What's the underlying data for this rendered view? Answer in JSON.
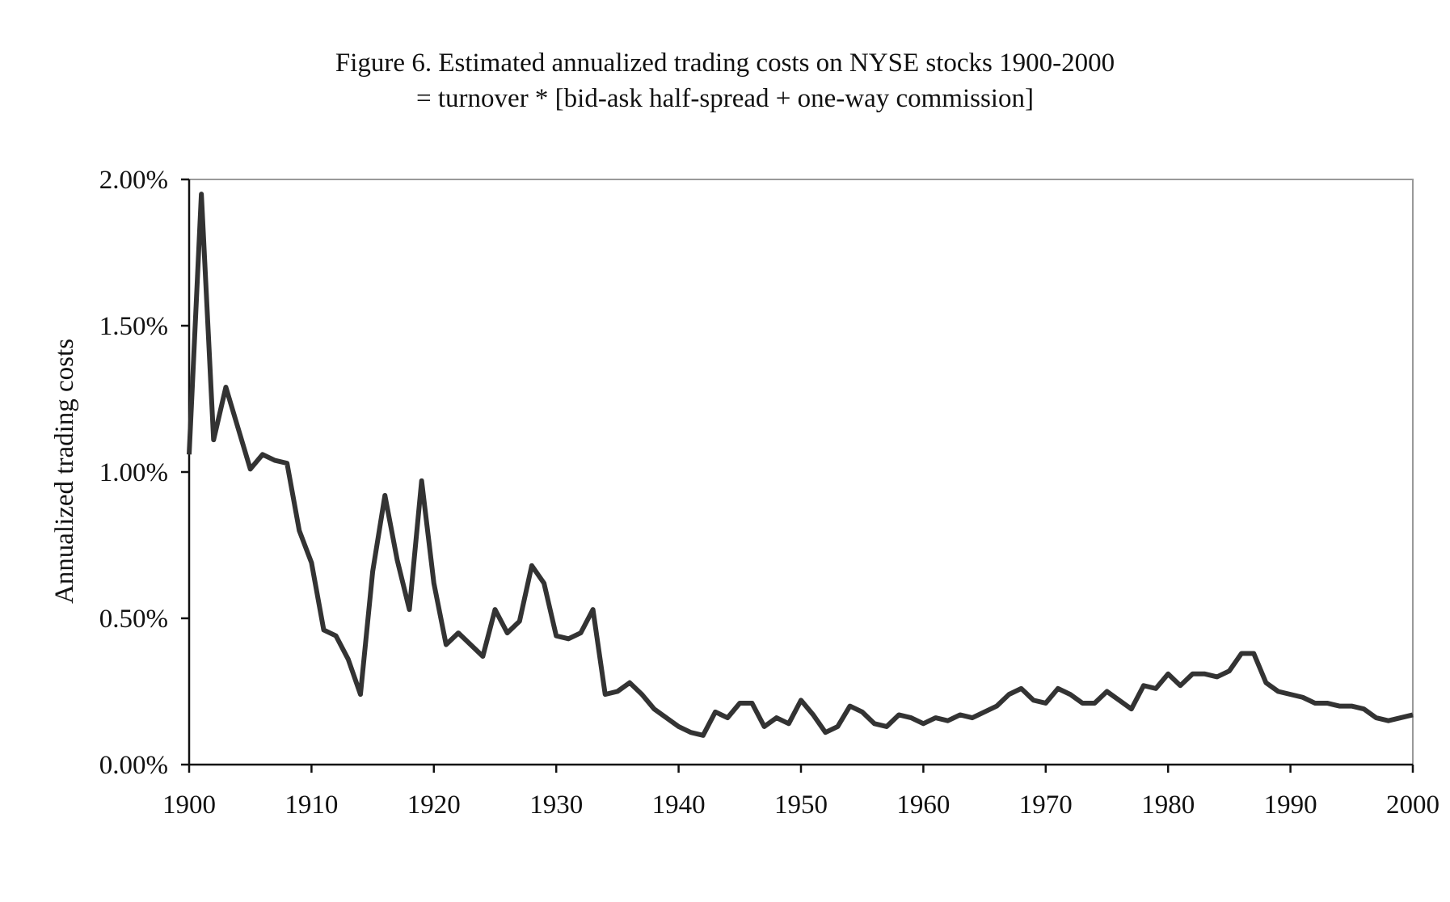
{
  "chart_data": {
    "type": "line",
    "title": "Figure 6.  Estimated annualized trading costs on NYSE stocks 1900-2000",
    "subtitle": "= turnover * [bid-ask half-spread + one-way commission]",
    "xlabel": "",
    "ylabel": "Annualized trading costs",
    "xlim": [
      1900,
      2000
    ],
    "ylim": [
      0,
      0.02
    ],
    "x_ticks": [
      1900,
      1910,
      1920,
      1930,
      1940,
      1950,
      1960,
      1970,
      1980,
      1990,
      2000
    ],
    "x_tick_labels": [
      "1900",
      "1910",
      "1920",
      "1930",
      "1940",
      "1950",
      "1960",
      "1970",
      "1980",
      "1990",
      "2000"
    ],
    "y_ticks": [
      0,
      0.005,
      0.01,
      0.015,
      0.02
    ],
    "y_tick_labels": [
      "0.00%",
      "0.50%",
      "1.00%",
      "1.50%",
      "2.00%"
    ],
    "grid": false,
    "series": [
      {
        "name": "Annualized trading costs",
        "color": "#333333",
        "x": [
          1900,
          1901,
          1902,
          1903,
          1904,
          1905,
          1906,
          1907,
          1908,
          1909,
          1910,
          1911,
          1912,
          1913,
          1914,
          1915,
          1916,
          1917,
          1918,
          1919,
          1920,
          1921,
          1922,
          1923,
          1924,
          1925,
          1926,
          1927,
          1928,
          1929,
          1930,
          1931,
          1932,
          1933,
          1934,
          1935,
          1936,
          1937,
          1938,
          1939,
          1940,
          1941,
          1942,
          1943,
          1944,
          1945,
          1946,
          1947,
          1948,
          1949,
          1950,
          1951,
          1952,
          1953,
          1954,
          1955,
          1956,
          1957,
          1958,
          1959,
          1960,
          1961,
          1962,
          1963,
          1964,
          1965,
          1966,
          1967,
          1968,
          1969,
          1970,
          1971,
          1972,
          1973,
          1974,
          1975,
          1976,
          1977,
          1978,
          1979,
          1980,
          1981,
          1982,
          1983,
          1984,
          1985,
          1986,
          1987,
          1988,
          1989,
          1990,
          1991,
          1992,
          1993,
          1994,
          1995,
          1996,
          1997,
          1998,
          1999,
          2000
        ],
        "values": [
          0.0106,
          0.0195,
          0.0111,
          0.0129,
          0.0115,
          0.0101,
          0.0106,
          0.0104,
          0.0103,
          0.008,
          0.0069,
          0.0046,
          0.0044,
          0.0036,
          0.0024,
          0.0066,
          0.0092,
          0.007,
          0.0053,
          0.0097,
          0.0062,
          0.0041,
          0.0045,
          0.0041,
          0.0037,
          0.0053,
          0.0045,
          0.0049,
          0.0068,
          0.0062,
          0.0044,
          0.0043,
          0.0045,
          0.0053,
          0.0024,
          0.0025,
          0.0028,
          0.0024,
          0.0019,
          0.0016,
          0.0013,
          0.0011,
          0.001,
          0.0018,
          0.0016,
          0.0021,
          0.0021,
          0.0013,
          0.0016,
          0.0014,
          0.0022,
          0.0017,
          0.0011,
          0.0013,
          0.002,
          0.0018,
          0.0014,
          0.0013,
          0.0017,
          0.0016,
          0.0014,
          0.0016,
          0.0015,
          0.0017,
          0.0016,
          0.0018,
          0.002,
          0.0024,
          0.0026,
          0.0022,
          0.0021,
          0.0026,
          0.0024,
          0.0021,
          0.0021,
          0.0025,
          0.0022,
          0.0019,
          0.0027,
          0.0026,
          0.0031,
          0.0027,
          0.0031,
          0.0031,
          0.003,
          0.0032,
          0.0038,
          0.0038,
          0.0028,
          0.0025,
          0.0024,
          0.0023,
          0.0021,
          0.0021,
          0.002,
          0.002,
          0.0019,
          0.0016,
          0.0015,
          0.0016,
          0.0017
        ]
      }
    ]
  }
}
